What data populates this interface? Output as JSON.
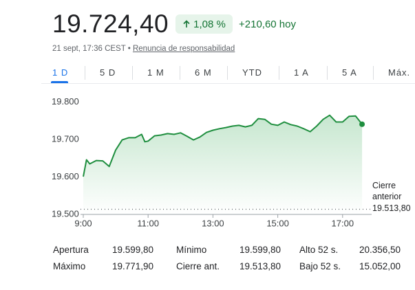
{
  "header": {
    "price": "19.724,40",
    "change": "1,08 %",
    "change_today": "+210,60 hoy",
    "timestamp": "21 sept, 17:36 CEST",
    "disclaimer": "Renuncia de responsabilidad"
  },
  "tabs": [
    "1 D",
    "5 D",
    "1 M",
    "6 M",
    "YTD",
    "1 A",
    "5 A",
    "Máx."
  ],
  "chart_data": {
    "type": "line",
    "x": [
      9.0,
      9.1,
      9.2,
      9.4,
      9.6,
      9.8,
      10.0,
      10.2,
      10.4,
      10.6,
      10.8,
      10.9,
      11.0,
      11.2,
      11.4,
      11.6,
      11.8,
      12.0,
      12.2,
      12.4,
      12.6,
      12.8,
      13.0,
      13.2,
      13.4,
      13.6,
      13.8,
      14.0,
      14.2,
      14.4,
      14.6,
      14.8,
      15.0,
      15.2,
      15.4,
      15.6,
      15.8,
      16.0,
      16.2,
      16.4,
      16.6,
      16.7,
      16.8,
      17.0,
      17.2,
      17.4,
      17.6
    ],
    "series": [
      {
        "color": "#1e8e3e",
        "values": [
          19601,
          19646,
          19635,
          19644,
          19643,
          19628,
          19672,
          19699,
          19705,
          19705,
          19714,
          19694,
          19696,
          19710,
          19712,
          19716,
          19714,
          19718,
          19709,
          19699,
          19707,
          19719,
          19725,
          19729,
          19732,
          19736,
          19738,
          19734,
          19738,
          19756,
          19754,
          19741,
          19738,
          19747,
          19740,
          19736,
          19729,
          19721,
          19736,
          19754,
          19765,
          19756,
          19747,
          19747,
          19762,
          19763,
          19741
        ]
      }
    ],
    "xlim": [
      8.9,
      17.9
    ],
    "ylim": [
      19500,
      19825
    ],
    "xticks": [
      {
        "value": 9,
        "label": "9:00"
      },
      {
        "value": 11,
        "label": "11:00"
      },
      {
        "value": 13,
        "label": "13:00"
      },
      {
        "value": 15,
        "label": "15:00"
      },
      {
        "value": 17,
        "label": "17:00"
      }
    ],
    "yticks": [
      {
        "value": 19500,
        "label": "19.500"
      },
      {
        "value": 19600,
        "label": "19.600"
      },
      {
        "value": 19700,
        "label": "19.700"
      },
      {
        "value": 19800,
        "label": "19.800"
      }
    ],
    "reference_line": {
      "name": "Cierre anterior",
      "value": 19513.8,
      "label": "19.513,80"
    }
  },
  "stats": [
    [
      "Apertura",
      "19.599,80",
      "Mínimo",
      "19.599,80",
      "Alto 52 s.",
      "20.356,50"
    ],
    [
      "Máximo",
      "19.771,90",
      "Cierre ant.",
      "19.513,80",
      "Bajo 52 s.",
      "15.052,00"
    ]
  ]
}
